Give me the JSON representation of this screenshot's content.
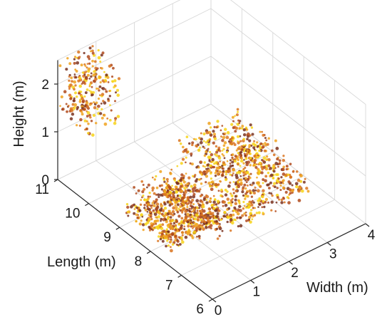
{
  "chart_data": {
    "type": "scatter",
    "title": "",
    "xlabel": "Width (m)",
    "ylabel": "Length (m)",
    "zlabel": "Height (m)",
    "xlim": [
      0,
      4
    ],
    "ylim": [
      6,
      11
    ],
    "zlim": [
      0,
      2.5
    ],
    "x_ticks": [
      "0",
      "1",
      "2",
      "3",
      "4"
    ],
    "y_ticks": [
      "6",
      "7",
      "8",
      "9",
      "10",
      "11"
    ],
    "z_ticks": [
      "0",
      "1",
      "2"
    ],
    "grid": true,
    "colormap": [
      "#f7d419",
      "#f0a21e",
      "#d9731f",
      "#b04a1c",
      "#7a3320"
    ],
    "clusters": [
      {
        "x": [
          0.0,
          0.9
        ],
        "y": [
          10.0,
          11.0
        ],
        "z": [
          1.3,
          2.5
        ],
        "count": 260
      },
      {
        "x": [
          0.3,
          1.6
        ],
        "y": [
          7.7,
          9.2
        ],
        "z": [
          0.0,
          0.25
        ],
        "count": 520
      },
      {
        "x": [
          1.3,
          3.8
        ],
        "y": [
          7.4,
          9.3
        ],
        "z": [
          0.0,
          0.3
        ],
        "count": 620
      },
      {
        "x": [
          2.2,
          3.9
        ],
        "y": [
          8.6,
          10.0
        ],
        "z": [
          0.1,
          0.5
        ],
        "count": 280
      },
      {
        "x": [
          0.8,
          2.0
        ],
        "y": [
          9.1,
          9.7
        ],
        "z": [
          0.0,
          0.2
        ],
        "count": 60
      }
    ]
  }
}
